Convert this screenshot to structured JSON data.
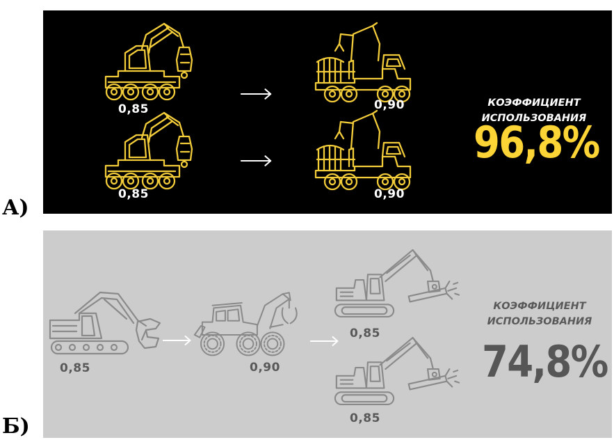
{
  "panel_a": {
    "letter": "А)",
    "colors": {
      "background": "#000000",
      "line": "#f3cc3a",
      "text": "#ffffff",
      "accent": "#fdd436"
    },
    "rows": [
      {
        "harvester_value": "0,85",
        "forwarder_value": "0,90"
      },
      {
        "harvester_value": "0,85",
        "forwarder_value": "0,90"
      }
    ],
    "icons": [
      "harvester-icon",
      "arrow-right-icon",
      "forwarder-icon"
    ],
    "coefficient_label_line1": "КОЭФФИЦИЕНТ",
    "coefficient_label_line2": "ИСПОЛЬЗОВАНИЯ",
    "coefficient_value": "96,8%"
  },
  "panel_b": {
    "letter": "Б)",
    "colors": {
      "background": "#cccccc",
      "line": "#8a8a8a",
      "text": "#595959",
      "accent": "#565656"
    },
    "feller_value": "0,85",
    "skidder_value": "0,90",
    "processor_values": [
      "0,85",
      "0,85"
    ],
    "icons": [
      "feller-buncher-icon",
      "skidder-icon",
      "processor-icon",
      "arrow-right-icon"
    ],
    "coefficient_label_line1": "КОЭФФИЦИЕНТ",
    "coefficient_label_line2": "ИСПОЛЬЗОВАНИЯ",
    "coefficient_value": "74,8%"
  }
}
